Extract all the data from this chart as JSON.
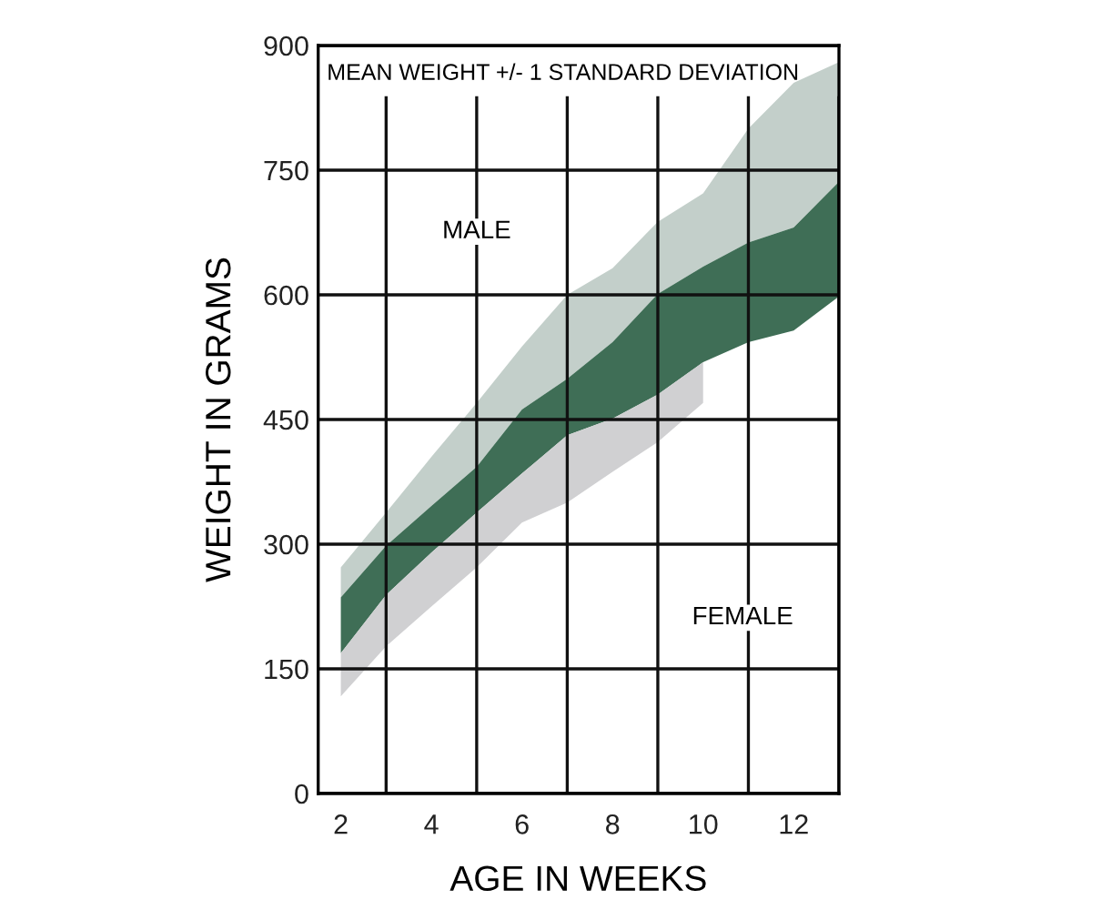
{
  "chart_data": {
    "type": "area",
    "title": "MEAN WEIGHT +/- 1 STANDARD DEVIATION",
    "xlabel": "AGE IN WEEKS",
    "ylabel": "WEIGHT IN GRAMS",
    "xlim": [
      1.5,
      13
    ],
    "ylim": [
      0,
      900
    ],
    "xticks": [
      2,
      4,
      6,
      8,
      10,
      12,
      {
        "value": 3,
        "label": null
      },
      {
        "value": 5,
        "label": null
      },
      {
        "value": 7,
        "label": null
      },
      {
        "value": 9,
        "label": null
      },
      {
        "value": 11,
        "label": null
      },
      {
        "value": 13,
        "label": null
      }
    ],
    "yticks": [
      0,
      150,
      300,
      450,
      600,
      750,
      900
    ],
    "grid": true,
    "series": [
      {
        "color": "#c3cfca",
        "x": [
          2,
          3,
          4,
          5,
          6,
          7,
          8,
          9,
          10,
          11,
          12,
          13
        ],
        "values": [
          null,
          null,
          null,
          null,
          null,
          null,
          null,
          null,
          null,
          null,
          null,
          null
        ],
        "upper": [
          272,
          338,
          405,
          470,
          538,
          600,
          632,
          688,
          722,
          800,
          855,
          880
        ],
        "lower": [
          236,
          298,
          346,
          393,
          462,
          499,
          543,
          601,
          634,
          663,
          681,
          736
        ]
      },
      {
        "color": "#3f6e56",
        "x": [
          2,
          3,
          4,
          5,
          6,
          7,
          8,
          9,
          10,
          11,
          12,
          13
        ],
        "values": [
          null,
          null,
          null,
          null,
          null,
          null,
          null,
          null,
          null,
          null,
          null,
          null
        ],
        "upper": [
          236,
          298,
          346,
          393,
          462,
          499,
          543,
          601,
          634,
          663,
          681,
          736
        ],
        "lower": [
          169,
          239,
          290,
          338,
          385,
          431,
          451,
          480,
          519,
          543,
          557,
          598
        ]
      },
      {
        "color": "#d0d0d2",
        "x": [
          2,
          3,
          4,
          5,
          6,
          7,
          8,
          9,
          10
        ],
        "values": [
          null,
          null,
          null,
          null,
          null,
          null,
          null,
          null,
          null
        ],
        "upper": [
          169,
          239,
          290,
          338,
          385,
          431,
          451,
          480,
          519
        ],
        "lower": [
          117,
          177,
          225,
          272,
          326,
          350,
          387,
          423,
          470
        ]
      }
    ],
    "annotations": [
      {
        "text": "MALE",
        "x": 5,
        "y": 676
      },
      "FEMALE"
    ]
  }
}
